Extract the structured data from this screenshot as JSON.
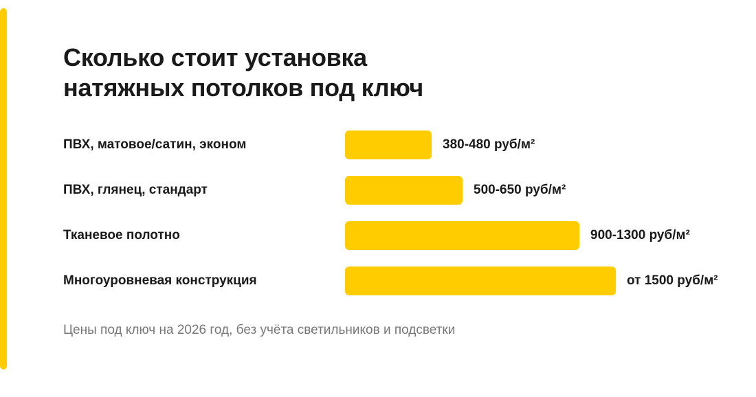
{
  "title_lines": [
    "Сколько стоит установка",
    "натяжных потолков под ключ"
  ],
  "footnote": "Цены под ключ на 2026 год, без учёта светильников и подсветки",
  "colors": {
    "accent": "#FFCC00",
    "text": "#1a1a1a",
    "muted": "#777777"
  },
  "chart_data": {
    "type": "bar",
    "orientation": "horizontal",
    "title": "Сколько стоит установка натяжных потолков под ключ",
    "unit": "руб/м²",
    "categories": [
      "ПВХ, матовое/сатин, эконом",
      "ПВХ, глянец, стандарт",
      "Тканевое полотно",
      "Многоуровневая конструкция"
    ],
    "values": [
      480,
      650,
      1300,
      1500
    ],
    "value_labels": [
      "380-480 руб/м²",
      "500-650 руб/м²",
      "900-1300 руб/м²",
      "от 1500 руб/м²"
    ],
    "xlim": [
      0,
      1500
    ],
    "grid": false,
    "legend": "none",
    "bar_color": "#FFCC00"
  }
}
